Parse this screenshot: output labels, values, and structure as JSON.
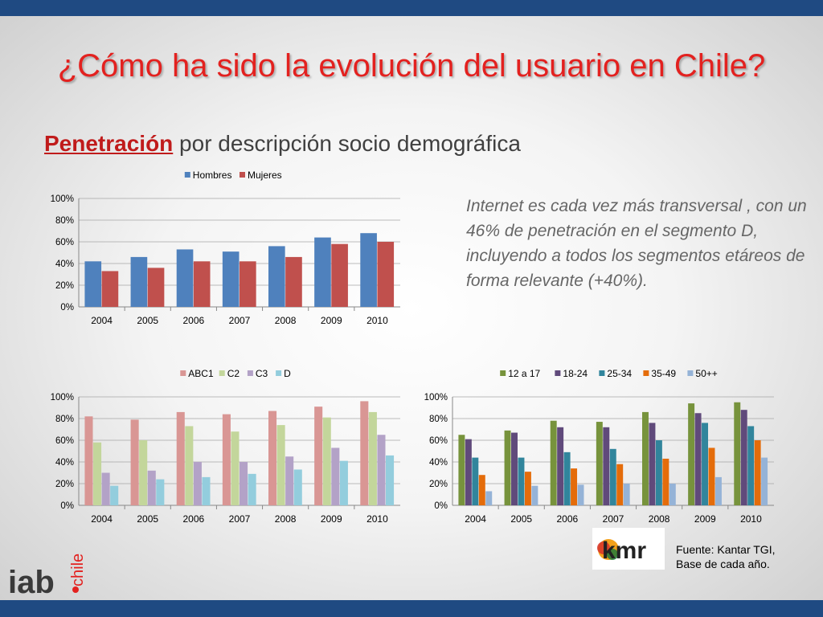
{
  "slide": {
    "title": "¿Cómo ha sido la evolución del usuario en Chile?",
    "subtitle_em": "Penetración",
    "subtitle_rest": " por descripción socio demográfica",
    "note": "Internet es cada vez más transversal , con un 46% de penetración en el segmento D, incluyendo a todos los segmentos etáreos de forma relevante (+40%).",
    "source_line1": "Fuente: Kantar TGI,",
    "source_line2": "Base de cada año.",
    "logo_iab": "iab",
    "logo_chile": "chile",
    "logo_kmr": "kmr"
  },
  "colors": {
    "bar_top": "#1f4a82",
    "title": "#e3211f"
  },
  "chart_data": [
    {
      "type": "bar",
      "title": "",
      "categories": [
        "2004",
        "2005",
        "2006",
        "2007",
        "2008",
        "2009",
        "2010"
      ],
      "ylim": [
        0,
        100
      ],
      "yticks": [
        "0%",
        "20%",
        "40%",
        "60%",
        "80%",
        "100%"
      ],
      "legend": "top",
      "grid": true,
      "series": [
        {
          "name": "Hombres",
          "color": "#4f81bd",
          "values": [
            42,
            46,
            53,
            51,
            56,
            64,
            68
          ]
        },
        {
          "name": "Mujeres",
          "color": "#c0504d",
          "values": [
            33,
            36,
            42,
            42,
            46,
            58,
            60
          ]
        }
      ]
    },
    {
      "type": "bar",
      "title": "",
      "categories": [
        "2004",
        "2005",
        "2006",
        "2007",
        "2008",
        "2009",
        "2010"
      ],
      "ylim": [
        0,
        100
      ],
      "yticks": [
        "0%",
        "20%",
        "40%",
        "60%",
        "80%",
        "100%"
      ],
      "legend": "top",
      "grid": true,
      "series": [
        {
          "name": "ABC1",
          "color": "#d99694",
          "values": [
            82,
            79,
            86,
            84,
            87,
            91,
            96
          ]
        },
        {
          "name": "C2",
          "color": "#c3d69b",
          "values": [
            58,
            60,
            73,
            68,
            74,
            81,
            86
          ]
        },
        {
          "name": "C3",
          "color": "#b3a2c7",
          "values": [
            30,
            32,
            40,
            40,
            45,
            53,
            65
          ]
        },
        {
          "name": "D",
          "color": "#93cddd",
          "values": [
            18,
            24,
            26,
            29,
            33,
            41,
            46
          ]
        }
      ]
    },
    {
      "type": "bar",
      "title": "",
      "categories": [
        "2004",
        "2005",
        "2006",
        "2007",
        "2008",
        "2009",
        "2010"
      ],
      "ylim": [
        0,
        100
      ],
      "yticks": [
        "0%",
        "20%",
        "40%",
        "60%",
        "80%",
        "100%"
      ],
      "legend": "top",
      "grid": true,
      "series": [
        {
          "name": "12 a 17",
          "color": "#77933c",
          "values": [
            65,
            69,
            78,
            77,
            86,
            94,
            95
          ]
        },
        {
          "name": "18-24",
          "color": "#604a7b",
          "values": [
            61,
            67,
            72,
            72,
            76,
            85,
            88
          ]
        },
        {
          "name": "25-34",
          "color": "#31859c",
          "values": [
            44,
            44,
            49,
            52,
            60,
            76,
            73
          ]
        },
        {
          "name": "35-49",
          "color": "#e46c0a",
          "values": [
            28,
            31,
            34,
            38,
            43,
            53,
            60
          ]
        },
        {
          "name": "50++",
          "color": "#95b3d7",
          "values": [
            13,
            18,
            19,
            20,
            20,
            26,
            44
          ]
        }
      ]
    }
  ]
}
